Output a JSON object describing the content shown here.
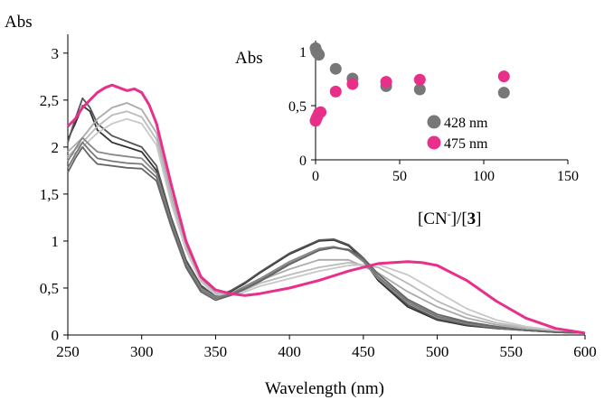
{
  "chart_data": [
    {
      "type": "line",
      "xlabel": "Wavelength (nm)",
      "ylabel": "Abs",
      "xlim": [
        250,
        600
      ],
      "ylim": [
        0,
        3.2
      ],
      "x_ticks": [
        "250",
        "300",
        "350",
        "400",
        "450",
        "500",
        "550",
        "600"
      ],
      "y_ticks": [
        "0",
        "0,5",
        "1",
        "1,5",
        "2",
        "2,5",
        "3"
      ],
      "grid": false,
      "series": [
        {
          "color": "#333333",
          "x": [
            250,
            255,
            260,
            265,
            270,
            280,
            290,
            300,
            310,
            320,
            330,
            340,
            350,
            360,
            370,
            380,
            400,
            420,
            430,
            440,
            450,
            460,
            480,
            500,
            520,
            540,
            560,
            580,
            600
          ],
          "y": [
            2.08,
            2.25,
            2.44,
            2.38,
            2.18,
            2.05,
            2.0,
            1.95,
            1.75,
            1.2,
            0.78,
            0.52,
            0.4,
            0.46,
            0.55,
            0.66,
            0.86,
            1.0,
            1.01,
            0.95,
            0.8,
            0.58,
            0.3,
            0.16,
            0.1,
            0.07,
            0.05,
            0.03,
            0.02
          ]
        },
        {
          "color": "#555555",
          "x": [
            250,
            255,
            260,
            265,
            270,
            280,
            290,
            300,
            310,
            320,
            330,
            340,
            350,
            360,
            370,
            380,
            400,
            420,
            430,
            440,
            450,
            460,
            480,
            500,
            520,
            540,
            560,
            580,
            600
          ],
          "y": [
            2.05,
            2.3,
            2.52,
            2.42,
            2.25,
            2.12,
            2.06,
            2.0,
            1.8,
            1.25,
            0.8,
            0.53,
            0.41,
            0.47,
            0.56,
            0.67,
            0.87,
            1.01,
            1.02,
            0.96,
            0.82,
            0.6,
            0.32,
            0.17,
            0.11,
            0.07,
            0.05,
            0.03,
            0.02
          ]
        },
        {
          "color": "#aaaaaa",
          "x": [
            250,
            260,
            270,
            280,
            290,
            300,
            310,
            320,
            330,
            340,
            350,
            360,
            370,
            380,
            400,
            420,
            440,
            460,
            480,
            500,
            520,
            540,
            560,
            580,
            600
          ],
          "y": [
            1.95,
            2.1,
            2.3,
            2.42,
            2.47,
            2.4,
            2.15,
            1.5,
            0.95,
            0.6,
            0.45,
            0.44,
            0.5,
            0.58,
            0.7,
            0.8,
            0.8,
            0.66,
            0.46,
            0.3,
            0.18,
            0.11,
            0.07,
            0.04,
            0.02
          ]
        },
        {
          "color": "#bbbbbb",
          "x": [
            250,
            260,
            270,
            280,
            290,
            300,
            310,
            320,
            330,
            340,
            350,
            360,
            370,
            380,
            400,
            420,
            440,
            460,
            480,
            500,
            520,
            540,
            560,
            580,
            600
          ],
          "y": [
            1.9,
            2.05,
            2.22,
            2.34,
            2.38,
            2.32,
            2.08,
            1.45,
            0.92,
            0.58,
            0.44,
            0.43,
            0.48,
            0.55,
            0.64,
            0.72,
            0.77,
            0.72,
            0.55,
            0.36,
            0.22,
            0.13,
            0.08,
            0.05,
            0.02
          ]
        },
        {
          "color": "#c8c8c8",
          "x": [
            250,
            260,
            270,
            280,
            290,
            300,
            310,
            320,
            330,
            340,
            350,
            360,
            370,
            380,
            400,
            420,
            440,
            460,
            480,
            500,
            520,
            540,
            560,
            580,
            600
          ],
          "y": [
            1.88,
            2.0,
            2.15,
            2.25,
            2.3,
            2.25,
            2.02,
            1.4,
            0.9,
            0.57,
            0.43,
            0.42,
            0.46,
            0.52,
            0.6,
            0.68,
            0.74,
            0.75,
            0.64,
            0.46,
            0.28,
            0.16,
            0.09,
            0.05,
            0.02
          ]
        },
        {
          "color": "#888888",
          "x": [
            250,
            255,
            260,
            265,
            270,
            280,
            290,
            300,
            310,
            320,
            330,
            340,
            350,
            360,
            370,
            380,
            400,
            420,
            430,
            440,
            450,
            460,
            480,
            500,
            520,
            540,
            560,
            580,
            600
          ],
          "y": [
            1.85,
            1.98,
            2.1,
            2.02,
            1.95,
            1.92,
            1.9,
            1.88,
            1.72,
            1.2,
            0.76,
            0.5,
            0.4,
            0.44,
            0.52,
            0.6,
            0.78,
            0.92,
            0.94,
            0.9,
            0.78,
            0.6,
            0.34,
            0.19,
            0.12,
            0.08,
            0.05,
            0.03,
            0.02
          ]
        },
        {
          "color": "#777777",
          "x": [
            250,
            255,
            260,
            265,
            270,
            280,
            290,
            300,
            310,
            320,
            330,
            340,
            350,
            360,
            370,
            380,
            400,
            420,
            430,
            440,
            450,
            460,
            480,
            500,
            520,
            540,
            560,
            580,
            600
          ],
          "y": [
            1.78,
            1.92,
            2.05,
            1.96,
            1.88,
            1.85,
            1.83,
            1.82,
            1.68,
            1.18,
            0.74,
            0.48,
            0.39,
            0.43,
            0.5,
            0.58,
            0.76,
            0.9,
            0.93,
            0.9,
            0.8,
            0.62,
            0.36,
            0.2,
            0.13,
            0.08,
            0.05,
            0.03,
            0.02
          ]
        },
        {
          "color": "#666666",
          "x": [
            250,
            255,
            260,
            265,
            270,
            280,
            290,
            300,
            310,
            320,
            330,
            340,
            350,
            360,
            370,
            380,
            400,
            420,
            430,
            440,
            450,
            460,
            480,
            500,
            520,
            540,
            560,
            580,
            600
          ],
          "y": [
            1.73,
            1.88,
            2.0,
            1.9,
            1.82,
            1.8,
            1.78,
            1.77,
            1.64,
            1.15,
            0.72,
            0.46,
            0.37,
            0.42,
            0.49,
            0.57,
            0.75,
            0.9,
            0.93,
            0.91,
            0.82,
            0.65,
            0.38,
            0.22,
            0.14,
            0.09,
            0.05,
            0.03,
            0.02
          ]
        },
        {
          "color": "#e8308a",
          "x": [
            250,
            255,
            260,
            265,
            270,
            275,
            280,
            285,
            290,
            295,
            300,
            305,
            310,
            320,
            330,
            340,
            350,
            360,
            370,
            380,
            400,
            420,
            440,
            460,
            480,
            490,
            500,
            520,
            540,
            560,
            580,
            600
          ],
          "y": [
            2.22,
            2.3,
            2.42,
            2.5,
            2.58,
            2.63,
            2.66,
            2.63,
            2.6,
            2.62,
            2.58,
            2.45,
            2.25,
            1.6,
            1.0,
            0.62,
            0.48,
            0.44,
            0.42,
            0.44,
            0.5,
            0.58,
            0.68,
            0.76,
            0.78,
            0.77,
            0.74,
            0.58,
            0.36,
            0.18,
            0.07,
            0.02
          ]
        }
      ]
    },
    {
      "type": "scatter",
      "xlabel": "[CN-]/[3]",
      "ylabel": "Abs",
      "xlim": [
        0,
        150
      ],
      "ylim": [
        0,
        1.1
      ],
      "x_ticks": [
        "0",
        "50",
        "100",
        "150"
      ],
      "y_ticks": [
        "0",
        "0,5",
        "1"
      ],
      "legend_position": "bottom-right",
      "series": [
        {
          "name": "428 nm",
          "color": "#777777",
          "x": [
            0,
            0.5,
            1,
            1.5,
            2,
            12,
            22,
            42,
            62,
            112
          ],
          "y": [
            1.03,
            1.0,
            0.99,
            0.98,
            0.97,
            0.84,
            0.75,
            0.68,
            0.65,
            0.62
          ]
        },
        {
          "name": "475 nm",
          "color": "#e8308a",
          "x": [
            0,
            0.5,
            1,
            2,
            3,
            12,
            22,
            42,
            62,
            112
          ],
          "y": [
            0.36,
            0.38,
            0.4,
            0.43,
            0.44,
            0.63,
            0.7,
            0.72,
            0.74,
            0.77
          ]
        }
      ]
    }
  ]
}
